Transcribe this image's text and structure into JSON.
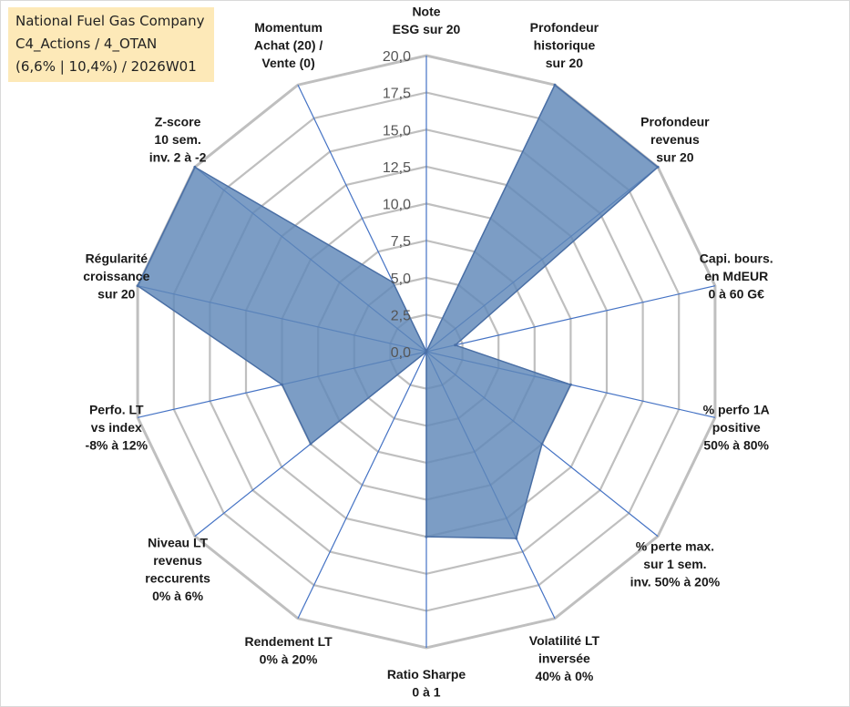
{
  "info_box": {
    "line1": "National Fuel Gas Company",
    "line2": "C4_Actions / 4_OTAN",
    "line3": "(6,6% | 10,4%) / 2026W01"
  },
  "colors": {
    "grid": "#bfbfbf",
    "spoke": "#4472c4",
    "fill": "#5f87b8",
    "fill_opacity": 0.82,
    "outline": "#4a6fa5"
  },
  "chart_data": {
    "type": "radar",
    "title": "",
    "rmin": 0,
    "rmax": 20,
    "rings": [
      0,
      2.5,
      5,
      7.5,
      10,
      12.5,
      15,
      17.5,
      20
    ],
    "tick_labels": [
      "0,0",
      "2,5",
      "5,0",
      "7,5",
      "10,0",
      "12,5",
      "15,0",
      "17,5",
      "20,0"
    ],
    "axes": [
      {
        "lines": [
          "Note",
          "ESG sur 20"
        ],
        "value": 0
      },
      {
        "lines": [
          "Profondeur",
          "historique",
          "sur 20"
        ],
        "value": 20
      },
      {
        "lines": [
          "Profondeur",
          "revenus",
          "sur 20"
        ],
        "value": 20
      },
      {
        "lines": [
          "Capi. bours.",
          "en MdEUR",
          "0 à 60 G€"
        ],
        "value": 2
      },
      {
        "lines": [
          "% perfo 1A",
          "positive",
          "50% à 80%"
        ],
        "value": 10
      },
      {
        "lines": [
          "% perte max.",
          "sur 1 sem.",
          "inv. 50% à 20%"
        ],
        "value": 10
      },
      {
        "lines": [
          "Volatilité LT",
          "inversée",
          "40% à 0%"
        ],
        "value": 14
      },
      {
        "lines": [
          "Ratio Sharpe",
          "0 à 1"
        ],
        "value": 12.5
      },
      {
        "lines": [
          "Rendement LT",
          "0% à 20%"
        ],
        "value": 0
      },
      {
        "lines": [
          "Niveau LT",
          "revenus",
          "reccurents",
          "0% à 6%"
        ],
        "value": 10
      },
      {
        "lines": [
          "Perfo. LT",
          "vs index",
          "-8% à 12%"
        ],
        "value": 10
      },
      {
        "lines": [
          "Régularité",
          "croissance",
          "sur 20"
        ],
        "value": 20
      },
      {
        "lines": [
          "Z-score",
          "10 sem.",
          "inv. 2 à -2"
        ],
        "value": 20
      },
      {
        "lines": [
          "Momentum",
          "Achat (20) /",
          "Vente (0)"
        ],
        "value": 5.2
      }
    ]
  }
}
